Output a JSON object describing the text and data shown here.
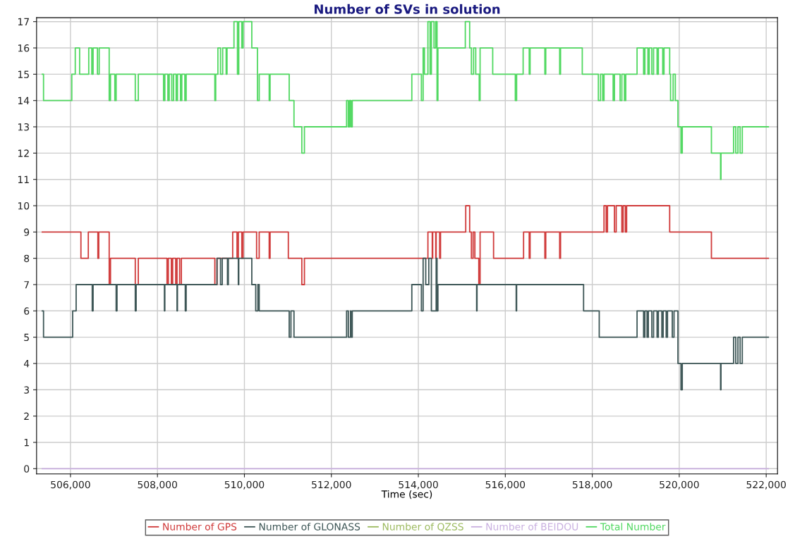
{
  "chart_data": {
    "type": "step",
    "title": "Number of SVs in solution",
    "xlabel": "Time (sec)",
    "xlim": [
      505220,
      522260
    ],
    "xticks": [
      {
        "value": 506000,
        "label": "506,000"
      },
      {
        "value": 508000,
        "label": "508,000"
      },
      {
        "value": 510000,
        "label": "510,000"
      },
      {
        "value": 512000,
        "label": "512,000"
      },
      {
        "value": 514000,
        "label": "514,000"
      },
      {
        "value": 516000,
        "label": "516,000"
      },
      {
        "value": 518000,
        "label": "518,000"
      },
      {
        "value": 520000,
        "label": "520,000"
      },
      {
        "value": 522000,
        "label": "522,000"
      }
    ],
    "ylim": [
      -0.2,
      17.15
    ],
    "yticks": [
      0,
      1,
      2,
      3,
      4,
      5,
      6,
      7,
      8,
      9,
      10,
      11,
      12,
      13,
      14,
      15,
      16,
      17
    ],
    "grid": true,
    "legend": "bottom",
    "series": [
      {
        "name": "Number of GPS",
        "color": "#d03a3a",
        "x": [
          505350,
          506240,
          506410,
          506630,
          506650,
          506890,
          506920,
          507490,
          507560,
          508220,
          508250,
          508320,
          508350,
          508420,
          508450,
          508510,
          508550,
          509320,
          509370,
          509730,
          509830,
          509860,
          509940,
          509970,
          510280,
          510340,
          510570,
          510590,
          511010,
          511320,
          511380,
          514220,
          514320,
          514330,
          514400,
          514410,
          514490,
          514510,
          515090,
          515180,
          515220,
          515260,
          515300,
          515390,
          515420,
          515730,
          516420,
          516550,
          516570,
          516910,
          516930,
          517250,
          517270,
          518270,
          518320,
          518350,
          518510,
          518550,
          518680,
          518710,
          518760,
          518790,
          519780,
          520740,
          522050
        ],
        "values": [
          9,
          8,
          9,
          8,
          9,
          7,
          8,
          7,
          8,
          7,
          8,
          7,
          8,
          7,
          8,
          7,
          8,
          7,
          8,
          9,
          8,
          9,
          8,
          9,
          8,
          9,
          8,
          9,
          8,
          7,
          8,
          9,
          8,
          9,
          8,
          9,
          8,
          9,
          10,
          9,
          8,
          9,
          8,
          7,
          9,
          8,
          9,
          8,
          9,
          8,
          9,
          8,
          9,
          10,
          9,
          10,
          9,
          10,
          9,
          10,
          9,
          10,
          9,
          8,
          8
        ]
      },
      {
        "name": "Number of GLONASS",
        "color": "#3d5656",
        "x": [
          505350,
          505380,
          506050,
          506130,
          506500,
          506520,
          507050,
          507070,
          507490,
          507510,
          508160,
          508170,
          508450,
          508460,
          508640,
          508660,
          509370,
          509450,
          509490,
          509610,
          509630,
          509860,
          509870,
          510170,
          510260,
          510310,
          510340,
          511030,
          511070,
          511140,
          512350,
          512390,
          512440,
          512450,
          512480,
          513850,
          514070,
          514110,
          514170,
          514240,
          514300,
          514410,
          514430,
          514450,
          515340,
          515350,
          516250,
          516260,
          517800,
          518160,
          519030,
          519180,
          519210,
          519260,
          519290,
          519370,
          519410,
          519490,
          519520,
          519600,
          519630,
          519700,
          519730,
          519840,
          519880,
          519970,
          520040,
          520070,
          520950,
          520960,
          521250,
          521300,
          521350,
          521400,
          521450,
          522050
        ],
        "values": [
          6,
          5,
          6,
          7,
          6,
          7,
          6,
          7,
          6,
          7,
          6,
          7,
          6,
          7,
          6,
          7,
          8,
          7,
          8,
          7,
          8,
          7,
          8,
          7,
          6,
          7,
          6,
          5,
          6,
          5,
          6,
          5,
          6,
          5,
          6,
          7,
          6,
          8,
          7,
          8,
          6,
          8,
          6,
          7,
          6,
          7,
          6,
          7,
          6,
          5,
          6,
          5,
          6,
          5,
          6,
          5,
          6,
          5,
          6,
          5,
          6,
          5,
          6,
          5,
          6,
          4,
          3,
          4,
          3,
          4,
          5,
          4,
          5,
          4,
          5,
          5
        ]
      },
      {
        "name": "Number of QZSS",
        "color": "#9cba5f"
      },
      {
        "name": "Number of BEIDOU",
        "color": "#c9b0e0",
        "x": [
          505350,
          522050
        ],
        "values": [
          0,
          0
        ]
      },
      {
        "name": "Total Number",
        "color": "#50d860",
        "x": [
          505350,
          505380,
          506030,
          506110,
          506210,
          506420,
          506490,
          506520,
          506620,
          506660,
          506890,
          506920,
          507020,
          507050,
          507490,
          507560,
          508140,
          508170,
          508240,
          508270,
          508330,
          508370,
          508430,
          508460,
          508530,
          508560,
          508630,
          508660,
          509320,
          509340,
          509390,
          509450,
          509500,
          509580,
          509600,
          509760,
          509840,
          509870,
          509940,
          509970,
          510170,
          510300,
          510340,
          510570,
          510590,
          511030,
          511140,
          511320,
          511380,
          512350,
          512390,
          512420,
          512450,
          512480,
          513850,
          514070,
          514110,
          514140,
          514220,
          514270,
          514300,
          514360,
          514400,
          514430,
          514450,
          515080,
          515180,
          515220,
          515270,
          515320,
          515400,
          515420,
          515710,
          516230,
          516260,
          516410,
          516550,
          516570,
          516910,
          516930,
          517250,
          517270,
          517770,
          518140,
          518190,
          518240,
          518270,
          518480,
          518510,
          518640,
          518680,
          518740,
          518770,
          519030,
          519180,
          519210,
          519280,
          519310,
          519370,
          519410,
          519490,
          519520,
          519620,
          519650,
          519780,
          519800,
          519860,
          519910,
          519970,
          520040,
          520070,
          520740,
          520950,
          520960,
          521250,
          521300,
          521350,
          521400,
          521450,
          522050
        ],
        "values": [
          15,
          14,
          15,
          16,
          15,
          16,
          15,
          16,
          15,
          16,
          14,
          15,
          14,
          15,
          14,
          15,
          14,
          15,
          14,
          15,
          14,
          15,
          14,
          15,
          14,
          15,
          14,
          15,
          14,
          15,
          16,
          15,
          16,
          15,
          16,
          17,
          15,
          17,
          16,
          17,
          16,
          14,
          15,
          14,
          15,
          14,
          13,
          12,
          13,
          14,
          13,
          14,
          13,
          14,
          15,
          14,
          16,
          15,
          17,
          15,
          17,
          16,
          17,
          14,
          16,
          17,
          16,
          15,
          16,
          15,
          14,
          16,
          15,
          14,
          15,
          16,
          15,
          16,
          15,
          16,
          15,
          16,
          15,
          14,
          15,
          14,
          15,
          14,
          15,
          14,
          15,
          14,
          15,
          16,
          15,
          16,
          15,
          16,
          15,
          16,
          15,
          16,
          15,
          16,
          15,
          14,
          15,
          14,
          13,
          12,
          13,
          12,
          11,
          12,
          13,
          12,
          13,
          12,
          13,
          13
        ]
      }
    ]
  }
}
